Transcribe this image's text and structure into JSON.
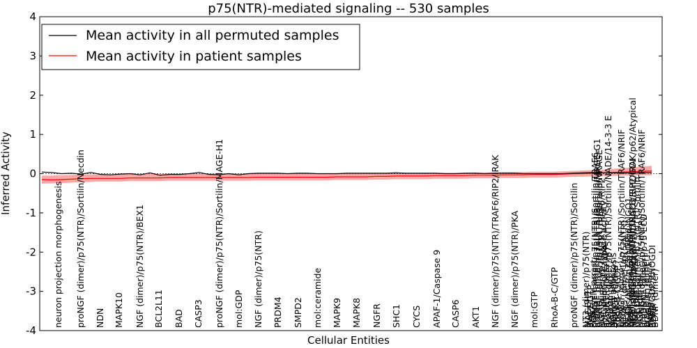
{
  "chart_data": {
    "type": "line",
    "title": "p75(NTR)-mediated signaling -- 530 samples",
    "xlabel": "Cellular Entities",
    "ylabel": "Inferred Activity",
    "ylim": [
      -4,
      4
    ],
    "yticks": [
      4,
      3,
      2,
      1,
      0,
      -1,
      -2,
      -3,
      -4
    ],
    "grid": false,
    "legend_position": "top-left",
    "categories": [
      "neuron projection morphogenesis",
      "proNGF (dimer)/p75(NTR)/Sortilin/Necdin",
      "NDN",
      "MAPK10",
      "NGF (dimer)/p75(NTR)/BEX1",
      "BCL2L11",
      "BAD",
      "CASP3",
      "proNGF (dimer)/p75(NTR)/Sortilin/MAGE-H1",
      "mol:GDP",
      "NGF (dimer)/p75(NTR)",
      "PRDM4",
      "SMPD2",
      "mol:ceramide",
      "MAPK9",
      "MAPK8",
      "NGFR",
      "SHC1",
      "CYCS",
      "APAF-1/Caspase 9",
      "CASP6",
      "AKT1",
      "NGF (dimer)/p75(NTR)/TRAF6/RIP2/IRAK",
      "NGF (dimer)/p75(NTR)/PKA",
      "mol:GTP",
      "RhoA-B-C/GTP",
      "proNGF (dimer)/p75(NTR)/Sortilin",
      "cell cycle arrest",
      "neuron apoptosis",
      "NGF (dimer)/p75(NTR)/TRAF6/RIP2/IRAK/p62/Atypical",
      "RhoA/GDP/RHOGDI",
      "NT3 (dimer)/p75(NTR)",
      "MAGEH1",
      "RAC1/GTP",
      "PI3K",
      "proNGF (dimer)/p75(NTR)/Sortilin/TRAF6",
      "proNGF (dimer)/p75(NTR)/Sortilin/MAGE-G1",
      "proNGF (dimer)/p75(NTR)/Sortilin/NRAGE",
      "NGF (dimer)/p75(NTR)/TRAF6/RIP2",
      "activation of caspase activity",
      "p75(NTR)/beta APP",
      "proNGF (dimer)/p75(NTR)/Sortilin/NADE/14-3-3 E",
      "IKK complex",
      "NGF",
      "proNGF (dimer)",
      "RhoA-B-C/GDP",
      "TP53",
      "proNGF (dimer)/p75(NTR)/Sortilin/TRAF6/NRIF",
      "NT-4/5 (dimer)/p75(NTR)",
      "BEX1",
      "MGDIs/NGR/p75(NTR)/LINGO1",
      "BDNF (dimer)/p75(NTR)",
      "MGDIs/NGR/p75(NTR)/LINGO1/RHOGDI",
      "NGF (dimer)/TRKA",
      "proBDNF (dimer)/p75(NTR)/Sortilin",
      "NGF (dimer)",
      "proNGF (dimer)/p75(NTR)/Sortilin/TRAF6/NRIF",
      "proBDNF (dimer)/p75 ECD",
      "proBDNF (dimer)",
      "MAGE-G1/E2F1",
      "MMP3",
      "E2F1",
      "BDNF (dimer)"
    ],
    "series": [
      {
        "name": "Mean activity in all permuted samples",
        "color": "#000000",
        "values": [
          0.04,
          0.03,
          0.0,
          0.01,
          -0.01,
          0.03,
          -0.02,
          -0.03,
          -0.01,
          0.0,
          -0.03,
          0.02,
          -0.04,
          -0.02,
          -0.02,
          0.0,
          0.03,
          -0.02,
          -0.03,
          0.0,
          -0.03,
          0.0,
          0.01,
          0.01,
          0.01,
          0.0,
          0.01,
          0.01,
          0.0,
          0.0,
          0.0,
          0.01,
          0.01,
          0.01,
          0.01,
          0.01,
          0.02,
          0.01,
          0.01,
          0.01,
          0.01,
          0.0,
          0.0,
          0.01,
          0.01,
          0.0,
          0.01,
          0.01,
          0.01,
          0.0,
          0.0,
          0.0,
          0.0,
          0.0,
          0.01,
          0.02,
          0.03,
          0.02,
          0.02,
          0.02,
          0.02,
          0.03,
          0.03
        ]
      },
      {
        "name": "Mean activity in patient samples",
        "color": "#ff0000",
        "values": [
          -0.15,
          -0.16,
          -0.15,
          -0.14,
          -0.13,
          -0.12,
          -0.12,
          -0.12,
          -0.12,
          -0.11,
          -0.11,
          -0.11,
          -0.11,
          -0.1,
          -0.1,
          -0.1,
          -0.1,
          -0.1,
          -0.1,
          -0.1,
          -0.1,
          -0.1,
          -0.09,
          -0.09,
          -0.09,
          -0.09,
          -0.09,
          -0.09,
          -0.09,
          -0.09,
          -0.08,
          -0.08,
          -0.08,
          -0.08,
          -0.07,
          -0.07,
          -0.06,
          -0.06,
          -0.06,
          -0.06,
          -0.05,
          -0.05,
          -0.05,
          -0.05,
          -0.04,
          -0.04,
          -0.04,
          -0.03,
          -0.03,
          -0.03,
          -0.02,
          -0.02,
          -0.02,
          -0.01,
          0.0,
          0.0,
          0.01,
          0.02,
          0.03,
          0.04,
          0.05,
          0.06,
          0.07
        ],
        "band_lower": [
          -0.25,
          -0.25,
          -0.24,
          -0.23,
          -0.22,
          -0.21,
          -0.2,
          -0.2,
          -0.2,
          -0.19,
          -0.19,
          -0.19,
          -0.19,
          -0.18,
          -0.18,
          -0.18,
          -0.18,
          -0.18,
          -0.18,
          -0.18,
          -0.18,
          -0.18,
          -0.17,
          -0.17,
          -0.17,
          -0.17,
          -0.17,
          -0.17,
          -0.17,
          -0.17,
          -0.16,
          -0.16,
          -0.16,
          -0.16,
          -0.15,
          -0.15,
          -0.14,
          -0.14,
          -0.14,
          -0.14,
          -0.13,
          -0.13,
          -0.13,
          -0.13,
          -0.12,
          -0.12,
          -0.12,
          -0.11,
          -0.11,
          -0.11,
          -0.1,
          -0.1,
          -0.1,
          -0.09,
          -0.08,
          -0.08,
          -0.07,
          -0.06,
          -0.06,
          -0.05,
          -0.05,
          -0.04,
          -0.04
        ],
        "band_upper": [
          -0.05,
          -0.05,
          -0.04,
          -0.03,
          -0.02,
          -0.02,
          -0.02,
          -0.02,
          -0.02,
          -0.01,
          -0.01,
          -0.01,
          -0.01,
          0.0,
          0.0,
          0.0,
          0.0,
          0.0,
          0.0,
          0.0,
          0.0,
          0.0,
          0.0,
          0.0,
          0.0,
          0.0,
          0.0,
          0.0,
          0.0,
          0.0,
          0.0,
          0.0,
          0.0,
          0.0,
          0.01,
          0.01,
          0.01,
          0.01,
          0.01,
          0.01,
          0.02,
          0.02,
          0.02,
          0.02,
          0.03,
          0.03,
          0.03,
          0.04,
          0.04,
          0.04,
          0.05,
          0.05,
          0.05,
          0.06,
          0.07,
          0.08,
          0.09,
          0.1,
          0.12,
          0.14,
          0.16,
          0.18,
          0.2
        ]
      }
    ]
  }
}
